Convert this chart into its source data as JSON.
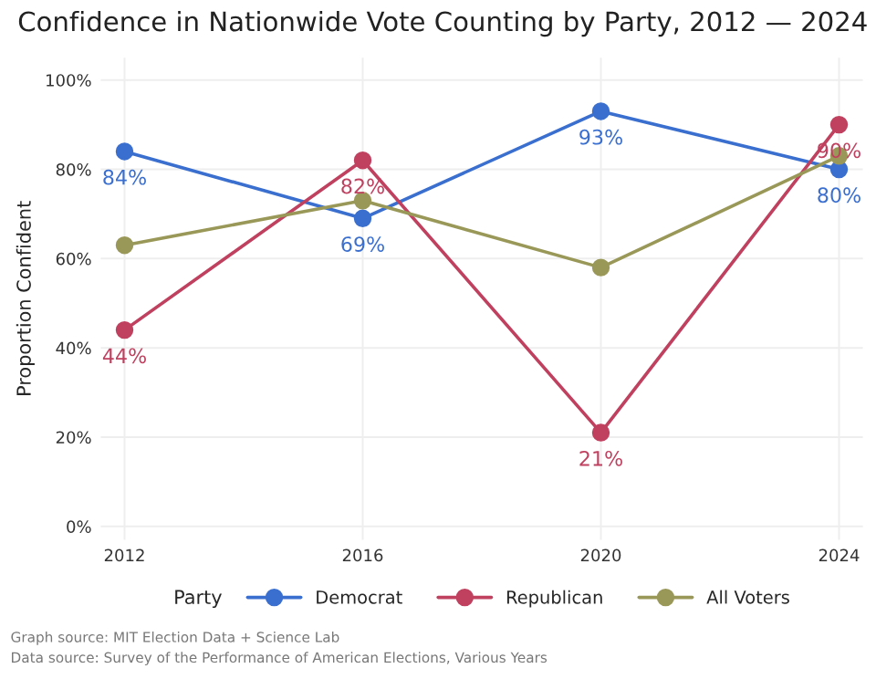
{
  "chart_data": {
    "type": "line",
    "title": "Confidence in Nationwide Vote Counting by Party, 2012 — 2024",
    "ylabel": "Proportion Confident",
    "legend_title": "Party",
    "categories": [
      "2012",
      "2016",
      "2020",
      "2024"
    ],
    "series": [
      {
        "name": "Democrat",
        "color": "#3a6fcf",
        "values": [
          84,
          69,
          93,
          80
        ],
        "value_labels": [
          "84%",
          "69%",
          "93%",
          "80%"
        ]
      },
      {
        "name": "Republican",
        "color": "#c0405f",
        "values": [
          44,
          82,
          21,
          90
        ],
        "value_labels": [
          "44%",
          "82%",
          "21%",
          "90%"
        ]
      },
      {
        "name": "All Voters",
        "color": "#9a9858",
        "values": [
          63,
          73,
          58,
          83
        ]
      }
    ],
    "ylim": [
      -3,
      105
    ],
    "yticks": [
      {
        "value": 0,
        "label": "0%"
      },
      {
        "value": 20,
        "label": "20%"
      },
      {
        "value": 40,
        "label": "40%"
      },
      {
        "value": 60,
        "label": "60%"
      },
      {
        "value": 80,
        "label": "80%"
      },
      {
        "value": 100,
        "label": "100%"
      }
    ],
    "grid": true,
    "legend": "bottom",
    "marker": "circle",
    "line_style": "solid",
    "annotations": [
      "Graph source: MIT Election Data + Science Lab",
      "Data source: Survey of the Performance of American Elections, Various Years"
    ]
  }
}
